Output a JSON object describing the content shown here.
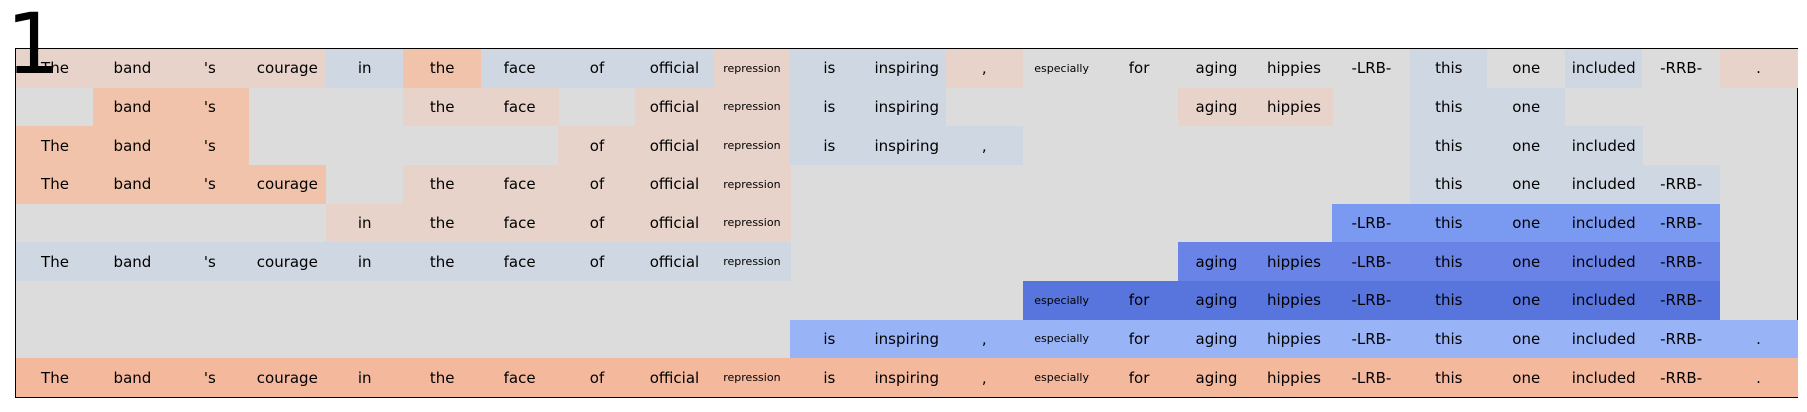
{
  "panel_number": "1",
  "tokens": [
    "The",
    "band",
    "'s",
    "courage",
    "in",
    "the",
    "face",
    "of",
    "official",
    "repression",
    "is",
    "inspiring",
    ",",
    "especially",
    "for",
    "aging",
    "hippies",
    "-LRB-",
    "this",
    "one",
    "included",
    "-RRB-",
    "."
  ],
  "small_tokens": [
    "repression",
    "especially"
  ],
  "background_color": "#dcdcdc",
  "palette": {
    "grey": "#dcdcdc",
    "warm_light": "#e7d3ca",
    "warm_mid": "#f1c3aa",
    "warm_strong": "#f4b89d",
    "cool_light": "#cfd7e2",
    "cool_soft": "#98b3f6",
    "cool_mid": "#7a99f0",
    "cool_strong": "#6983e7",
    "cool_deep": "#5874dd"
  },
  "rows": [
    {
      "cells": [
        {
          "i": 0,
          "c": "warm_light"
        },
        {
          "i": 1,
          "c": "warm_light"
        },
        {
          "i": 2,
          "c": "warm_light"
        },
        {
          "i": 3,
          "c": "warm_light"
        },
        {
          "i": 4,
          "c": "cool_light"
        },
        {
          "i": 5,
          "c": "warm_mid"
        },
        {
          "i": 6,
          "c": "cool_light"
        },
        {
          "i": 7,
          "c": "cool_light"
        },
        {
          "i": 8,
          "c": "cool_light"
        },
        {
          "i": 9,
          "c": "warm_light"
        },
        {
          "i": 10,
          "c": "cool_light"
        },
        {
          "i": 11,
          "c": "cool_light"
        },
        {
          "i": 12,
          "c": "warm_light"
        },
        {
          "i": 13,
          "c": "grey"
        },
        {
          "i": 14,
          "c": "grey"
        },
        {
          "i": 15,
          "c": "grey"
        },
        {
          "i": 16,
          "c": "grey"
        },
        {
          "i": 17,
          "c": "grey"
        },
        {
          "i": 18,
          "c": "cool_light"
        },
        {
          "i": 19,
          "c": "grey"
        },
        {
          "i": 20,
          "c": "cool_light"
        },
        {
          "i": 21,
          "c": "grey"
        },
        {
          "i": 22,
          "c": "warm_light"
        }
      ]
    },
    {
      "cells": [
        {
          "i": 1,
          "c": "warm_mid"
        },
        {
          "i": 2,
          "c": "warm_mid"
        },
        {
          "i": 5,
          "c": "warm_light"
        },
        {
          "i": 6,
          "c": "warm_light"
        },
        {
          "i": 8,
          "c": "warm_light"
        },
        {
          "i": 9,
          "c": "warm_light"
        },
        {
          "i": 10,
          "c": "cool_light"
        },
        {
          "i": 11,
          "c": "cool_light"
        },
        {
          "i": 15,
          "c": "warm_light"
        },
        {
          "i": 16,
          "c": "warm_light"
        },
        {
          "i": 18,
          "c": "cool_light"
        },
        {
          "i": 19,
          "c": "cool_light"
        }
      ]
    },
    {
      "cells": [
        {
          "i": 0,
          "c": "warm_mid"
        },
        {
          "i": 1,
          "c": "warm_mid"
        },
        {
          "i": 2,
          "c": "warm_mid"
        },
        {
          "i": 7,
          "c": "warm_light"
        },
        {
          "i": 8,
          "c": "warm_light"
        },
        {
          "i": 9,
          "c": "warm_light"
        },
        {
          "i": 10,
          "c": "cool_light"
        },
        {
          "i": 11,
          "c": "cool_light"
        },
        {
          "i": 12,
          "c": "cool_light"
        },
        {
          "i": 18,
          "c": "cool_light"
        },
        {
          "i": 19,
          "c": "cool_light"
        },
        {
          "i": 20,
          "c": "cool_light"
        }
      ]
    },
    {
      "cells": [
        {
          "i": 0,
          "c": "warm_mid"
        },
        {
          "i": 1,
          "c": "warm_mid"
        },
        {
          "i": 2,
          "c": "warm_mid"
        },
        {
          "i": 3,
          "c": "warm_mid"
        },
        {
          "i": 5,
          "c": "warm_light"
        },
        {
          "i": 6,
          "c": "warm_light"
        },
        {
          "i": 7,
          "c": "warm_light"
        },
        {
          "i": 8,
          "c": "warm_light"
        },
        {
          "i": 9,
          "c": "warm_light"
        },
        {
          "i": 18,
          "c": "cool_light"
        },
        {
          "i": 19,
          "c": "cool_light"
        },
        {
          "i": 20,
          "c": "cool_light"
        },
        {
          "i": 21,
          "c": "cool_light"
        }
      ]
    },
    {
      "cells": [
        {
          "i": 4,
          "c": "warm_light"
        },
        {
          "i": 5,
          "c": "warm_light"
        },
        {
          "i": 6,
          "c": "warm_light"
        },
        {
          "i": 7,
          "c": "warm_light"
        },
        {
          "i": 8,
          "c": "warm_light"
        },
        {
          "i": 9,
          "c": "warm_light"
        },
        {
          "i": 17,
          "c": "cool_mid"
        },
        {
          "i": 18,
          "c": "cool_mid"
        },
        {
          "i": 19,
          "c": "cool_mid"
        },
        {
          "i": 20,
          "c": "cool_mid"
        },
        {
          "i": 21,
          "c": "cool_mid"
        }
      ]
    },
    {
      "cells": [
        {
          "i": 0,
          "c": "cool_light"
        },
        {
          "i": 1,
          "c": "cool_light"
        },
        {
          "i": 2,
          "c": "cool_light"
        },
        {
          "i": 3,
          "c": "cool_light"
        },
        {
          "i": 4,
          "c": "cool_light"
        },
        {
          "i": 5,
          "c": "cool_light"
        },
        {
          "i": 6,
          "c": "cool_light"
        },
        {
          "i": 7,
          "c": "cool_light"
        },
        {
          "i": 8,
          "c": "cool_light"
        },
        {
          "i": 9,
          "c": "cool_light"
        },
        {
          "i": 15,
          "c": "cool_strong"
        },
        {
          "i": 16,
          "c": "cool_strong"
        },
        {
          "i": 17,
          "c": "cool_strong"
        },
        {
          "i": 18,
          "c": "cool_strong"
        },
        {
          "i": 19,
          "c": "cool_strong"
        },
        {
          "i": 20,
          "c": "cool_strong"
        },
        {
          "i": 21,
          "c": "cool_strong"
        }
      ]
    },
    {
      "cells": [
        {
          "i": 13,
          "c": "cool_deep"
        },
        {
          "i": 14,
          "c": "cool_deep"
        },
        {
          "i": 15,
          "c": "cool_deep"
        },
        {
          "i": 16,
          "c": "cool_deep"
        },
        {
          "i": 17,
          "c": "cool_deep"
        },
        {
          "i": 18,
          "c": "cool_deep"
        },
        {
          "i": 19,
          "c": "cool_deep"
        },
        {
          "i": 20,
          "c": "cool_deep"
        },
        {
          "i": 21,
          "c": "cool_deep"
        }
      ]
    },
    {
      "cells": [
        {
          "i": 10,
          "c": "cool_soft"
        },
        {
          "i": 11,
          "c": "cool_soft"
        },
        {
          "i": 12,
          "c": "cool_soft"
        },
        {
          "i": 13,
          "c": "cool_soft"
        },
        {
          "i": 14,
          "c": "cool_soft"
        },
        {
          "i": 15,
          "c": "cool_soft"
        },
        {
          "i": 16,
          "c": "cool_soft"
        },
        {
          "i": 17,
          "c": "cool_soft"
        },
        {
          "i": 18,
          "c": "cool_soft"
        },
        {
          "i": 19,
          "c": "cool_soft"
        },
        {
          "i": 20,
          "c": "cool_soft"
        },
        {
          "i": 21,
          "c": "cool_soft"
        },
        {
          "i": 22,
          "c": "cool_soft"
        }
      ]
    },
    {
      "cells": [
        {
          "i": 0,
          "c": "warm_strong"
        },
        {
          "i": 1,
          "c": "warm_strong"
        },
        {
          "i": 2,
          "c": "warm_strong"
        },
        {
          "i": 3,
          "c": "warm_strong"
        },
        {
          "i": 4,
          "c": "warm_strong"
        },
        {
          "i": 5,
          "c": "warm_strong"
        },
        {
          "i": 6,
          "c": "warm_strong"
        },
        {
          "i": 7,
          "c": "warm_strong"
        },
        {
          "i": 8,
          "c": "warm_strong"
        },
        {
          "i": 9,
          "c": "warm_strong"
        },
        {
          "i": 10,
          "c": "warm_strong"
        },
        {
          "i": 11,
          "c": "warm_strong"
        },
        {
          "i": 12,
          "c": "warm_strong"
        },
        {
          "i": 13,
          "c": "warm_strong"
        },
        {
          "i": 14,
          "c": "warm_strong"
        },
        {
          "i": 15,
          "c": "warm_strong"
        },
        {
          "i": 16,
          "c": "warm_strong"
        },
        {
          "i": 17,
          "c": "warm_strong"
        },
        {
          "i": 18,
          "c": "warm_strong"
        },
        {
          "i": 19,
          "c": "warm_strong"
        },
        {
          "i": 20,
          "c": "warm_strong"
        },
        {
          "i": 21,
          "c": "warm_strong"
        },
        {
          "i": 22,
          "c": "warm_strong"
        }
      ]
    }
  ]
}
